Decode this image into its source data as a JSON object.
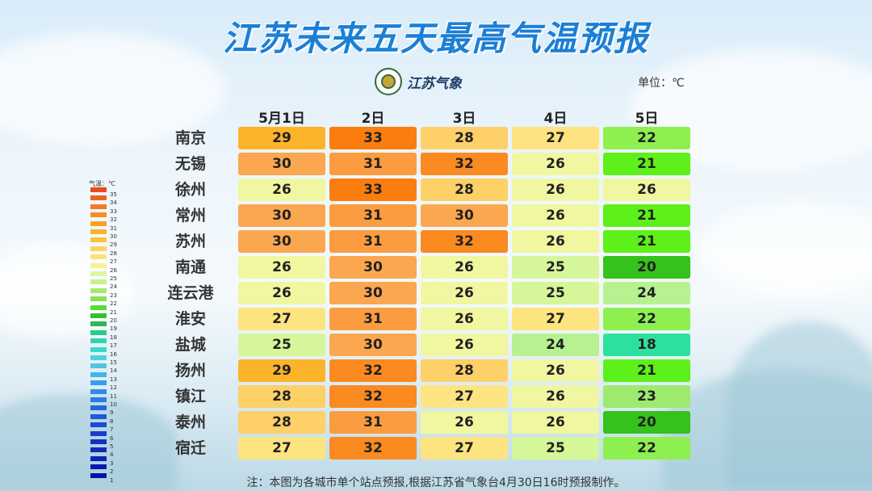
{
  "title": "江苏未来五天最高气温预报",
  "logo_text": "江苏气象",
  "unit": "单位：℃",
  "days": [
    "5月1日",
    "2日",
    "3日",
    "4日",
    "5日"
  ],
  "rows": [
    {
      "city": "南京",
      "temps": [
        29,
        33,
        28,
        27,
        22
      ]
    },
    {
      "city": "无锡",
      "temps": [
        30,
        31,
        32,
        26,
        21
      ]
    },
    {
      "city": "徐州",
      "temps": [
        26,
        33,
        28,
        26,
        26
      ]
    },
    {
      "city": "常州",
      "temps": [
        30,
        31,
        30,
        26,
        21
      ]
    },
    {
      "city": "苏州",
      "temps": [
        30,
        31,
        32,
        26,
        21
      ]
    },
    {
      "city": "南通",
      "temps": [
        26,
        30,
        26,
        25,
        20
      ]
    },
    {
      "city": "连云港",
      "temps": [
        26,
        30,
        26,
        25,
        24
      ]
    },
    {
      "city": "淮安",
      "temps": [
        27,
        31,
        26,
        27,
        22
      ]
    },
    {
      "city": "盐城",
      "temps": [
        25,
        30,
        26,
        24,
        18
      ]
    },
    {
      "city": "扬州",
      "temps": [
        29,
        32,
        28,
        26,
        21
      ]
    },
    {
      "city": "镇江",
      "temps": [
        28,
        32,
        27,
        26,
        23
      ]
    },
    {
      "city": "泰州",
      "temps": [
        28,
        31,
        26,
        26,
        20
      ]
    },
    {
      "city": "宿迁",
      "temps": [
        27,
        32,
        27,
        25,
        22
      ]
    }
  ],
  "temp_colors": {
    "18": "#2ee0a0",
    "20": "#35c21a",
    "21": "#5ef01a",
    "22": "#8ef050",
    "23": "#9eea6e",
    "24": "#b6f290",
    "25": "#d6f69a",
    "26": "#f0f7a0",
    "27": "#fde480",
    "28": "#fdd068",
    "29": "#fbb42a",
    "30": "#fba750",
    "31": "#fb9c40",
    "32": "#fb8a20",
    "33": "#fb7d10"
  },
  "legend": {
    "title": "气温：℃",
    "labels": [
      "35",
      "34",
      "33",
      "32",
      "31",
      "30",
      "29",
      "28",
      "27",
      "26",
      "25",
      "24",
      "23",
      "22",
      "21",
      "20",
      "19",
      "18",
      "17",
      "16",
      "15",
      "14",
      "13",
      "12",
      "11",
      "10",
      "9",
      "8",
      "7",
      "6",
      "5",
      "4",
      "3",
      "2",
      "1"
    ],
    "colors": [
      "#e84a1c",
      "#f06020",
      "#f57a22",
      "#f98d22",
      "#fba02a",
      "#fbb22e",
      "#fcc43a",
      "#fdd35a",
      "#fde27a",
      "#f6f0a0",
      "#e2f49c",
      "#c8f08a",
      "#a8ea6e",
      "#86e454",
      "#5ed83a",
      "#34c22a",
      "#2bb85a",
      "#2ec88a",
      "#33d4ad",
      "#3bd8c8",
      "#48d4dc",
      "#4ec4e8",
      "#46b2ea",
      "#3a9ee8",
      "#328ce6",
      "#2a7ce2",
      "#2468de",
      "#2058d8",
      "#1c4ad2",
      "#183ccc",
      "#1432c4",
      "#102abc",
      "#0c22b4",
      "#081aac",
      "#0414a4"
    ]
  },
  "note": "注：本图为各城市单个站点预报,根据江苏省气象台4月30日16时预报制作。"
}
